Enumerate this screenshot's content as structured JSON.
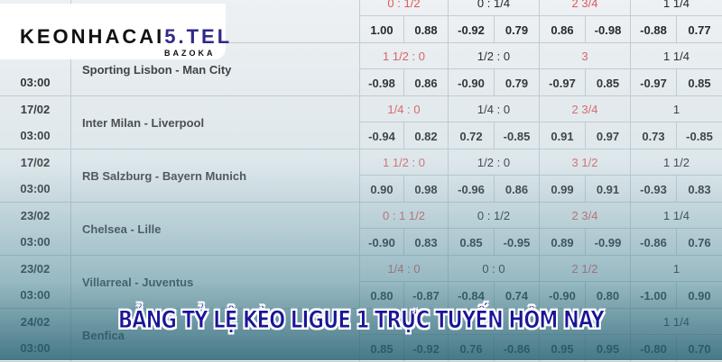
{
  "logo": {
    "main": "KEONHACAI",
    "accent": "5.TEL",
    "sub": "BAZOKA"
  },
  "banner": "BẢNG TỶ LỆ KÈO LIGUE 1 TRỰC TUYẾN HÔM NAY",
  "colors": {
    "handicap_red": "#e0575a",
    "banner": "#1a1596",
    "grid": "#c5cbd0"
  },
  "rows": [
    {
      "date": "",
      "time": "",
      "match": "",
      "lines": [
        "0 : 1/2",
        "0 : 1/4",
        "2 3/4",
        "1 1/4"
      ],
      "odds": [
        "1.00",
        "0.88",
        "-0.92",
        "0.79",
        "0.86",
        "-0.98",
        "-0.88",
        "0.77"
      ]
    },
    {
      "date": "",
      "time": "03:00",
      "match": "Sporting Lisbon - Man City",
      "lines": [
        "1 1/2 : 0",
        "1/2 : 0",
        "3",
        "1 1/4"
      ],
      "odds": [
        "-0.98",
        "0.86",
        "-0.90",
        "0.79",
        "-0.97",
        "0.85",
        "-0.97",
        "0.85"
      ]
    },
    {
      "date": "17/02",
      "time": "03:00",
      "match": "Inter Milan - Liverpool",
      "lines": [
        "1/4 : 0",
        "1/4 : 0",
        "2 3/4",
        "1"
      ],
      "odds": [
        "-0.94",
        "0.82",
        "0.72",
        "-0.85",
        "0.91",
        "0.97",
        "0.73",
        "-0.85"
      ]
    },
    {
      "date": "17/02",
      "time": "03:00",
      "match": "RB Salzburg - Bayern Munich",
      "lines": [
        "1 1/2 : 0",
        "1/2 : 0",
        "3 1/2",
        "1 1/2"
      ],
      "odds": [
        "0.90",
        "0.98",
        "-0.96",
        "0.86",
        "0.99",
        "0.91",
        "-0.93",
        "0.83"
      ]
    },
    {
      "date": "23/02",
      "time": "03:00",
      "match": "Chelsea - Lille",
      "lines": [
        "0 : 1 1/2",
        "0 : 1/2",
        "2 3/4",
        "1 1/4"
      ],
      "odds": [
        "-0.90",
        "0.83",
        "0.85",
        "-0.95",
        "0.89",
        "-0.99",
        "-0.86",
        "0.76"
      ]
    },
    {
      "date": "23/02",
      "time": "03:00",
      "match": "Villarreal - Juventus",
      "lines": [
        "1/4 : 0",
        "0 : 0",
        "2 1/2",
        "1"
      ],
      "odds": [
        "0.80",
        "-0.87",
        "-0.84",
        "0.74",
        "-0.90",
        "0.80",
        "-1.00",
        "0.90"
      ]
    },
    {
      "date": "24/02",
      "time": "03:00",
      "match": "Benfica",
      "lines": [
        "",
        "",
        "",
        "1 1/4"
      ],
      "odds": [
        "0.85",
        "-0.92",
        "0.76",
        "-0.86",
        "0.95",
        "0.95",
        "-0.80",
        "0.70"
      ]
    }
  ]
}
